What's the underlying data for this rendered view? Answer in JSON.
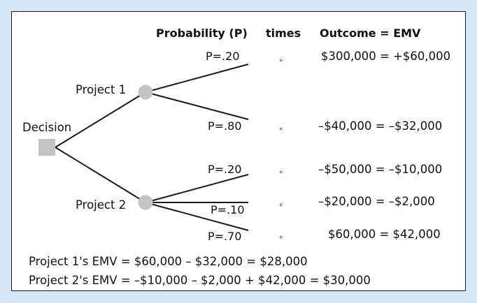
{
  "colors": {
    "background": "#d4e9f7",
    "panel": "#ffffff",
    "line": "#1a1a1a",
    "node": "#c4c4c4"
  },
  "headers": {
    "probability": "Probability (P)",
    "times": "times",
    "outcome": "Outcome = EMV"
  },
  "nodes": {
    "decision": "Decision",
    "project1": "Project 1",
    "project2": "Project 2"
  },
  "branches": [
    {
      "probability": "P=.20",
      "times": "*",
      "outcome": "$300,000 = +$60,000"
    },
    {
      "probability": "P=.80",
      "times": "*",
      "outcome": "–$40,000 = –$32,000"
    },
    {
      "probability": "P=.20",
      "times": "*",
      "outcome": "–$50,000 = –$10,000"
    },
    {
      "probability": "P=.10",
      "times": "*",
      "outcome": "–$20,000 = –$2,000"
    },
    {
      "probability": "P=.70",
      "times": "*",
      "outcome": "$60,000 = $42,000"
    }
  ],
  "summary": {
    "project1_emv": "Project 1's EMV = $60,000 – $32,000 = $28,000",
    "project2_emv": "Project 2's EMV = –$10,000 – $2,000 + $42,000 = $30,000"
  }
}
